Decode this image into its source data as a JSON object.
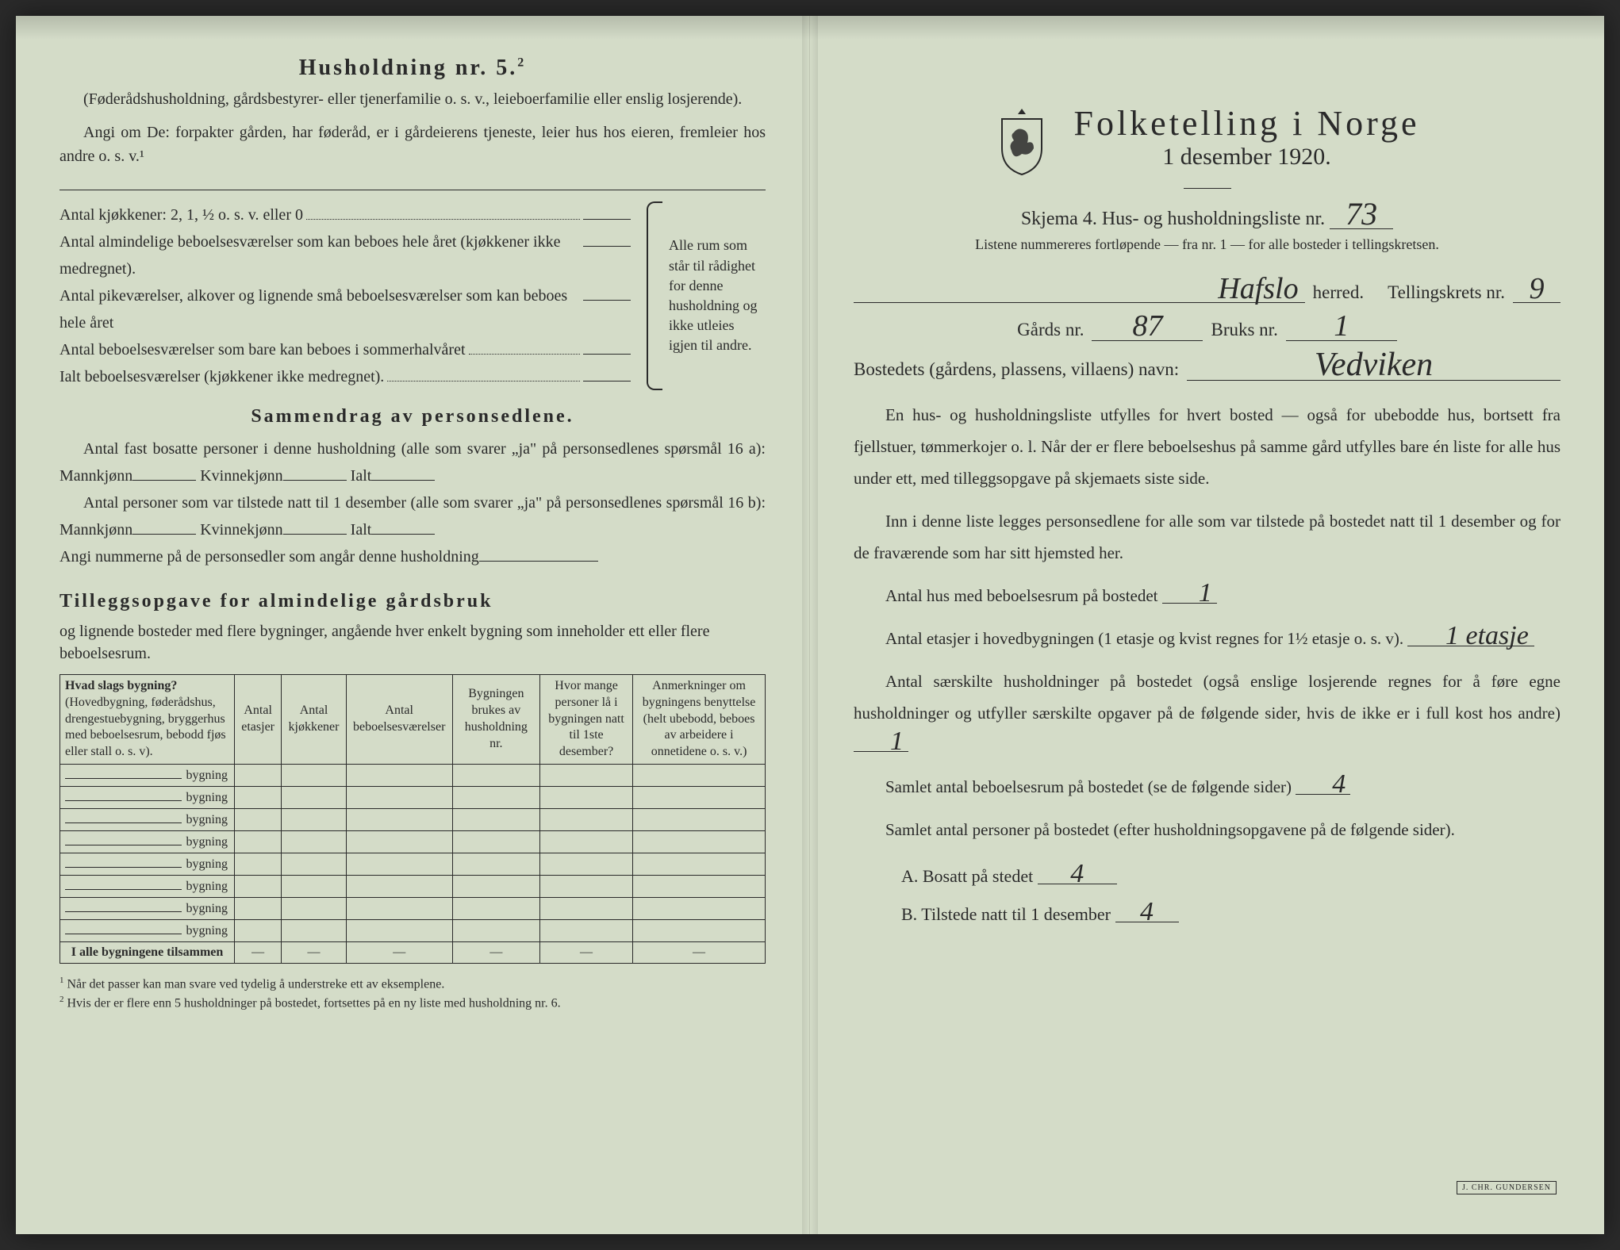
{
  "colors": {
    "paper": "#d4dcc8",
    "ink": "#2a2a2a",
    "shadow": "#1a1a1a"
  },
  "left": {
    "title": "Husholdning nr. 5.",
    "title_sup": "2",
    "intro1": "(Føderådshusholdning, gårdsbestyrer- eller tjenerfamilie o. s. v., leieboerfamilie eller enslig losjerende).",
    "intro2": "Angi om De: forpakter gården, har føderåd, er i gårdeierens tjeneste, leier hus hos eieren, fremleier hos andre o. s. v.¹",
    "rooms": [
      "Antal kjøkkener: 2, 1, ½ o. s. v. eller 0",
      "Antal almindelige beboelsesværelser som kan beboes hele året (kjøkkener ikke medregnet).",
      "Antal pikeværelser, alkover og lignende små beboelsesværelser som kan beboes hele året",
      "Antal beboelsesværelser som bare kan beboes i sommerhalvåret",
      "Ialt beboelsesværelser (kjøkkener ikke medregnet)."
    ],
    "brace_note": "Alle rum som står til rådighet for denne husholdning og ikke utleies igjen til andre.",
    "sammendrag_h": "Sammendrag av personsedlene.",
    "sammendrag_p1a": "Antal fast bosatte personer i denne husholdning (alle som svarer „ja\" på personsedlenes spørsmål 16 a): Mannkjønn",
    "sammendrag_p1b": "Kvinnekjønn",
    "sammendrag_p1c": "Ialt",
    "sammendrag_p2a": "Antal personer som var tilstede natt til 1 desember (alle som svarer „ja\" på personsedlenes spørsmål 16 b): Mannkjønn",
    "sammendrag_p3": "Angi nummerne på de personsedler som angår denne husholdning",
    "tillegg_h": "Tilleggsopgave for almindelige gårdsbruk",
    "tillegg_sub": "og lignende bosteder med flere bygninger, angående hver enkelt bygning som inneholder ett eller flere beboelsesrum.",
    "table": {
      "headers": [
        {
          "bold": "Hvad slags bygning?",
          "rest": "(Hovedbygning, føderådshus, drengestuebygning, bryggerhus med beboelsesrum, bebodd fjøs eller stall o. s. v)."
        },
        "Antal etasjer",
        "Antal kjøkkener",
        "Antal beboelsesværelser",
        "Bygningen brukes av husholdning nr.",
        "Hvor mange personer lå i bygningen natt til 1ste desember?",
        "Anmerkninger om bygningens benyttelse (helt ubebodd, beboes av arbeidere i onnetidene o. s. v.)"
      ],
      "row_suffix": "bygning",
      "row_count": 8,
      "sum_label": "I alle bygningene tilsammen"
    },
    "footnote1": "Når det passer kan man svare ved tydelig å understreke ett av eksemplene.",
    "footnote2": "Hvis der er flere enn 5 husholdninger på bostedet, fortsettes på en ny liste med husholdning nr. 6."
  },
  "right": {
    "title": "Folketelling i Norge",
    "subtitle": "1 desember 1920.",
    "skjema_label": "Skjema 4.  Hus- og husholdningsliste nr.",
    "liste_nr": "73",
    "liste_note": "Listene nummereres fortløpende — fra nr. 1 — for alle bosteder i tellingskretsen.",
    "herred_value": "Hafslo",
    "herred_label": "herred.",
    "tellingskrets_label": "Tellingskrets nr.",
    "tellingskrets_value": "9",
    "gards_label": "Gårds nr.",
    "gards_value": "87",
    "bruks_label": "Bruks nr.",
    "bruks_value": "1",
    "bosted_label": "Bostedets (gårdens, plassens, villaens) navn:",
    "bosted_value": "Vedviken",
    "para1": "En hus- og husholdningsliste utfylles for hvert bosted — også for ubebodde hus, bortsett fra fjellstuer, tømmerkojer o. l.  Når der er flere beboelseshus på samme gård utfylles bare én liste for alle hus under ett, med tilleggsopgave på skjemaets siste side.",
    "para2": "Inn i denne liste legges personsedlene for alle som var tilstede på bostedet natt til 1 desember og for de fraværende som har sitt hjemsted her.",
    "q1_label": "Antal hus med beboelsesrum på bostedet",
    "q1_value": "1",
    "q2_label_a": "Antal etasjer i hovedbygningen (1 etasje og kvist regnes for 1½ etasje o. s. v).",
    "q2_value": "1 etasje",
    "q3_label": "Antal særskilte husholdninger på bostedet (også enslige losjerende regnes for å føre egne husholdninger og utfyller særskilte opgaver på de følgende sider, hvis de ikke er i full kost hos andre)",
    "q3_value": "1",
    "q4_label": "Samlet antal beboelsesrum på bostedet (se de følgende sider)",
    "q4_value": "4",
    "q5_label": "Samlet antal personer på bostedet (efter husholdningsopgavene på de følgende sider).",
    "qa_label": "A.  Bosatt på stedet",
    "qa_value": "4",
    "qb_label": "B.  Tilstede natt til 1 desember",
    "qb_value": "4",
    "stamp": "J. CHR. GUNDERSEN"
  }
}
